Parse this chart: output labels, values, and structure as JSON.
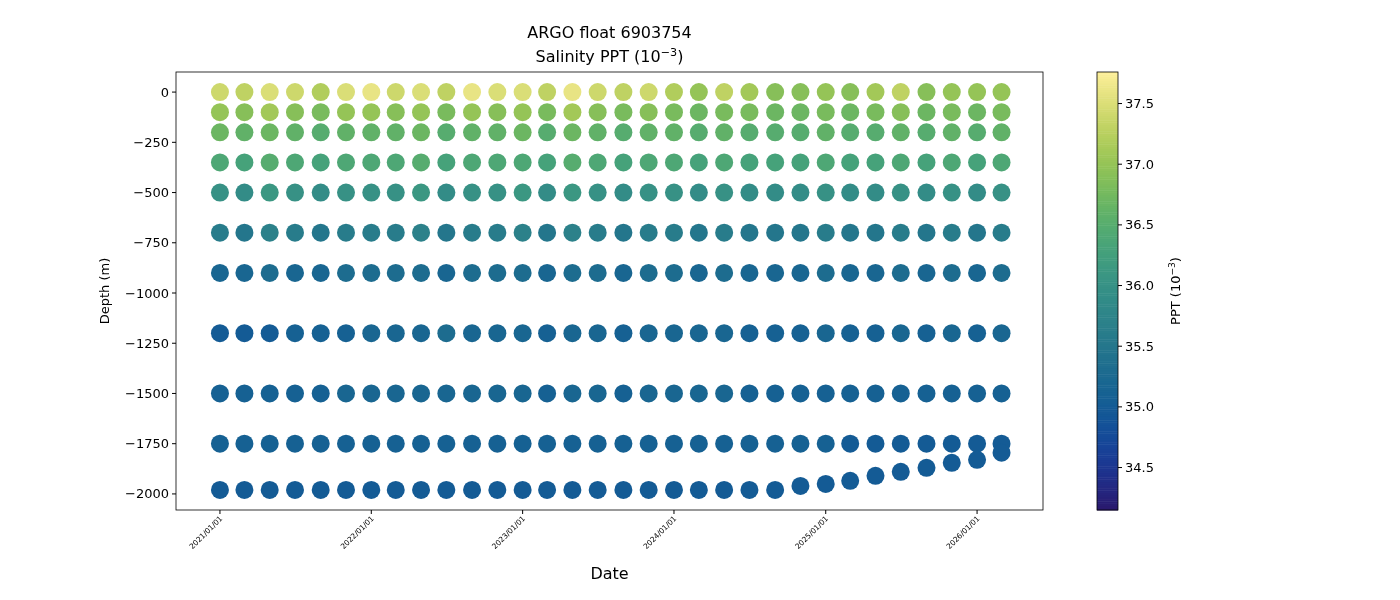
{
  "chart_data": {
    "type": "scatter",
    "marker": "circle",
    "title": "ARGO float 6903754",
    "subtitle": "Salinity PPT (10$^{−3}$)",
    "xlabel": "Date",
    "ylabel": "Depth (m)",
    "clabel": "PPT (10$^{−3}$)",
    "x": [
      "2021-01",
      "2021-03",
      "2021-05",
      "2021-07",
      "2021-09",
      "2021-11",
      "2022-01",
      "2022-03",
      "2022-05",
      "2022-07",
      "2022-09",
      "2022-11",
      "2023-01",
      "2023-03",
      "2023-05",
      "2023-07",
      "2023-09",
      "2023-11",
      "2024-01",
      "2024-03",
      "2024-05",
      "2024-07",
      "2024-09",
      "2024-11",
      "2025-01",
      "2025-03",
      "2025-05",
      "2025-07",
      "2025-09",
      "2025-11",
      "2026-01",
      "2026-03",
      "2021-01",
      "2021-03",
      "2021-05",
      "2021-07",
      "2021-09",
      "2021-11",
      "2022-01",
      "2022-03",
      "2022-05",
      "2022-07",
      "2022-09",
      "2022-11",
      "2023-01",
      "2023-03",
      "2023-05",
      "2023-07",
      "2023-09",
      "2023-11",
      "2024-01",
      "2024-03",
      "2024-05",
      "2024-07",
      "2024-09",
      "2024-11",
      "2025-01",
      "2025-03",
      "2025-05",
      "2025-07",
      "2025-09",
      "2025-11",
      "2026-01",
      "2026-03",
      "2021-01",
      "2021-03",
      "2021-05",
      "2021-07",
      "2021-09",
      "2021-11",
      "2022-01",
      "2022-03",
      "2022-05",
      "2022-07",
      "2022-09",
      "2022-11",
      "2023-01",
      "2023-03",
      "2023-05",
      "2023-07",
      "2023-09",
      "2023-11",
      "2024-01",
      "2024-03",
      "2024-05",
      "2024-07",
      "2024-09",
      "2024-11",
      "2025-01",
      "2025-03",
      "2025-05",
      "2025-07",
      "2025-09",
      "2025-11",
      "2026-01",
      "2026-03",
      "2021-01",
      "2021-03",
      "2021-05",
      "2021-07",
      "2021-09",
      "2021-11",
      "2022-01",
      "2022-03",
      "2022-05",
      "2022-07",
      "2022-09",
      "2022-11",
      "2023-01",
      "2023-03",
      "2023-05",
      "2023-07",
      "2023-09",
      "2023-11",
      "2024-01",
      "2024-03",
      "2024-05",
      "2024-07",
      "2024-09",
      "2024-11",
      "2025-01",
      "2025-03",
      "2025-05",
      "2025-07",
      "2025-09",
      "2025-11",
      "2026-01",
      "2026-03",
      "2021-01",
      "2021-03",
      "2021-05",
      "2021-07",
      "2021-09",
      "2021-11",
      "2022-01",
      "2022-03",
      "2022-05",
      "2022-07",
      "2022-09",
      "2022-11",
      "2023-01",
      "2023-03",
      "2023-05",
      "2023-07",
      "2023-09",
      "2023-11",
      "2024-01",
      "2024-03",
      "2024-05",
      "2024-07",
      "2024-09",
      "2024-11",
      "2025-01",
      "2025-03",
      "2025-05",
      "2025-07",
      "2025-09",
      "2025-11",
      "2026-01",
      "2026-03",
      "2021-01",
      "2021-03",
      "2021-05",
      "2021-07",
      "2021-09",
      "2021-11",
      "2022-01",
      "2022-03",
      "2022-05",
      "2022-07",
      "2022-09",
      "2022-11",
      "2023-01",
      "2023-03",
      "2023-05",
      "2023-07",
      "2023-09",
      "2023-11",
      "2024-01",
      "2024-03",
      "2024-05",
      "2024-07",
      "2024-09",
      "2024-11",
      "2025-01",
      "2025-03",
      "2025-05",
      "2025-07",
      "2025-09",
      "2025-11",
      "2026-01",
      "2026-03",
      "2021-01",
      "2021-03",
      "2021-05",
      "2021-07",
      "2021-09",
      "2021-11",
      "2022-01",
      "2022-03",
      "2022-05",
      "2022-07",
      "2022-09",
      "2022-11",
      "2023-01",
      "2023-03",
      "2023-05",
      "2023-07",
      "2023-09",
      "2023-11",
      "2024-01",
      "2024-03",
      "2024-05",
      "2024-07",
      "2024-09",
      "2024-11",
      "2025-01",
      "2025-03",
      "2025-05",
      "2025-07",
      "2025-09",
      "2025-11",
      "2026-01",
      "2026-03",
      "2021-01",
      "2021-03",
      "2021-05",
      "2021-07",
      "2021-09",
      "2021-11",
      "2022-01",
      "2022-03",
      "2022-05",
      "2022-07",
      "2022-09",
      "2022-11",
      "2023-01",
      "2023-03",
      "2023-05",
      "2023-07",
      "2023-09",
      "2023-11",
      "2024-01",
      "2024-03",
      "2024-05",
      "2024-07",
      "2024-09",
      "2024-11",
      "2025-01",
      "2025-03",
      "2025-05",
      "2025-07",
      "2025-09",
      "2025-11",
      "2026-01",
      "2026-03",
      "2021-01",
      "2021-03",
      "2021-05",
      "2021-07",
      "2021-09",
      "2021-11",
      "2022-01",
      "2022-03",
      "2022-05",
      "2022-07",
      "2022-09",
      "2022-11",
      "2023-01",
      "2023-03",
      "2023-05",
      "2023-07",
      "2023-09",
      "2023-11",
      "2024-01",
      "2024-03",
      "2024-05",
      "2024-07",
      "2024-09",
      "2024-11",
      "2025-01",
      "2025-03",
      "2025-05",
      "2025-07",
      "2025-09",
      "2025-11",
      "2026-01",
      "2026-03",
      "2021-01",
      "2021-03",
      "2021-05",
      "2021-07",
      "2021-09",
      "2021-11",
      "2022-01",
      "2022-03",
      "2022-05",
      "2022-07",
      "2022-09",
      "2022-11",
      "2023-01",
      "2023-03",
      "2023-05",
      "2023-07",
      "2023-09",
      "2023-11",
      "2024-01",
      "2024-03",
      "2024-05",
      "2024-07",
      "2024-09",
      "2024-11",
      "2025-01",
      "2025-03",
      "2025-05",
      "2025-07",
      "2025-09",
      "2025-11",
      "2026-01",
      "2026-03",
      "2021-01",
      "2021-03",
      "2021-05",
      "2021-07",
      "2021-09",
      "2021-11",
      "2022-01",
      "2022-03",
      "2022-05",
      "2022-07",
      "2022-09",
      "2022-11",
      "2023-01",
      "2023-03",
      "2023-05",
      "2023-07",
      "2023-09",
      "2023-11",
      "2024-01",
      "2024-03",
      "2024-05",
      "2024-07",
      "2024-09",
      "2024-11",
      "2025-01",
      "2025-03",
      "2025-05",
      "2025-07",
      "2025-09",
      "2025-11",
      "2026-01",
      "2026-03"
    ],
    "values": [
      0,
      0,
      0,
      0,
      0,
      0,
      0,
      0,
      0,
      0,
      0,
      0,
      0,
      0,
      0,
      0,
      0,
      0,
      0,
      0,
      0,
      0,
      0,
      0,
      0,
      0,
      0,
      0,
      0,
      0,
      0,
      0,
      -100,
      -100,
      -100,
      -100,
      -100,
      -100,
      -100,
      -100,
      -100,
      -100,
      -100,
      -100,
      -100,
      -100,
      -100,
      -100,
      -100,
      -100,
      -100,
      -100,
      -100,
      -100,
      -100,
      -100,
      -100,
      -100,
      -100,
      -100,
      -100,
      -100,
      -100,
      -100,
      -200,
      -200,
      -200,
      -200,
      -200,
      -200,
      -200,
      -200,
      -200,
      -200,
      -200,
      -200,
      -200,
      -200,
      -200,
      -200,
      -200,
      -200,
      -200,
      -200,
      -200,
      -200,
      -200,
      -200,
      -200,
      -200,
      -200,
      -200,
      -200,
      -200,
      -200,
      -200,
      -350,
      -350,
      -350,
      -350,
      -350,
      -350,
      -350,
      -350,
      -350,
      -350,
      -350,
      -350,
      -350,
      -350,
      -350,
      -350,
      -350,
      -350,
      -350,
      -350,
      -350,
      -350,
      -350,
      -350,
      -350,
      -350,
      -350,
      -350,
      -350,
      -350,
      -350,
      -350,
      -500,
      -500,
      -500,
      -500,
      -500,
      -500,
      -500,
      -500,
      -500,
      -500,
      -500,
      -500,
      -500,
      -500,
      -500,
      -500,
      -500,
      -500,
      -500,
      -500,
      -500,
      -500,
      -500,
      -500,
      -500,
      -500,
      -500,
      -500,
      -500,
      -500,
      -500,
      -500,
      -700,
      -700,
      -700,
      -700,
      -700,
      -700,
      -700,
      -700,
      -700,
      -700,
      -700,
      -700,
      -700,
      -700,
      -700,
      -700,
      -700,
      -700,
      -700,
      -700,
      -700,
      -700,
      -700,
      -700,
      -700,
      -700,
      -700,
      -700,
      -700,
      -700,
      -700,
      -700,
      -900,
      -900,
      -900,
      -900,
      -900,
      -900,
      -900,
      -900,
      -900,
      -900,
      -900,
      -900,
      -900,
      -900,
      -900,
      -900,
      -900,
      -900,
      -900,
      -900,
      -900,
      -900,
      -900,
      -900,
      -900,
      -900,
      -900,
      -900,
      -900,
      -900,
      -900,
      -900,
      -1200,
      -1200,
      -1200,
      -1200,
      -1200,
      -1200,
      -1200,
      -1200,
      -1200,
      -1200,
      -1200,
      -1200,
      -1200,
      -1200,
      -1200,
      -1200,
      -1200,
      -1200,
      -1200,
      -1200,
      -1200,
      -1200,
      -1200,
      -1200,
      -1200,
      -1200,
      -1200,
      -1200,
      -1200,
      -1200,
      -1200,
      -1200,
      -1500,
      -1500,
      -1500,
      -1500,
      -1500,
      -1500,
      -1500,
      -1500,
      -1500,
      -1500,
      -1500,
      -1500,
      -1500,
      -1500,
      -1500,
      -1500,
      -1500,
      -1500,
      -1500,
      -1500,
      -1500,
      -1500,
      -1500,
      -1500,
      -1500,
      -1500,
      -1500,
      -1500,
      -1500,
      -1500,
      -1500,
      -1500,
      -1750,
      -1750,
      -1750,
      -1750,
      -1750,
      -1750,
      -1750,
      -1750,
      -1750,
      -1750,
      -1750,
      -1750,
      -1750,
      -1750,
      -1750,
      -1750,
      -1750,
      -1750,
      -1750,
      -1750,
      -1750,
      -1750,
      -1750,
      -1750,
      -1750,
      -1750,
      -1750,
      -1750,
      -1750,
      -1750,
      -1750,
      -1750,
      -1980,
      -1980,
      -1980,
      -1980,
      -1980,
      -1980,
      -1980,
      -1980,
      -1980,
      -1980,
      -1980,
      -1980,
      -1980,
      -1980,
      -1980,
      -1980,
      -1980,
      -1980,
      -1980,
      -1980,
      -1980,
      -1980,
      -1980,
      -1960,
      -1950,
      -1935,
      -1910,
      -1890,
      -1870,
      -1845,
      -1830,
      -1795
    ],
    "cvalues": [
      37.4,
      37.3,
      37.5,
      37.4,
      37.2,
      37.5,
      37.6,
      37.4,
      37.5,
      37.3,
      37.6,
      37.5,
      37.5,
      37.3,
      37.6,
      37.4,
      37.3,
      37.4,
      37.2,
      37.0,
      37.3,
      37.1,
      36.9,
      36.9,
      37.0,
      36.9,
      37.1,
      37.3,
      36.9,
      37.0,
      37.0,
      37.0,
      37.0,
      36.9,
      37.1,
      36.9,
      36.8,
      37.0,
      37.0,
      36.9,
      37.0,
      36.8,
      37.0,
      36.9,
      37.0,
      36.8,
      37.1,
      36.9,
      36.8,
      36.9,
      36.8,
      36.7,
      36.8,
      36.8,
      36.7,
      36.7,
      36.8,
      36.7,
      36.8,
      36.9,
      36.7,
      36.8,
      36.7,
      36.8,
      36.7,
      36.6,
      36.7,
      36.6,
      36.5,
      36.6,
      36.6,
      36.6,
      36.7,
      36.5,
      36.6,
      36.6,
      36.7,
      36.5,
      36.7,
      36.6,
      36.5,
      36.6,
      36.6,
      36.5,
      36.6,
      36.5,
      36.5,
      36.5,
      36.6,
      36.5,
      36.5,
      36.6,
      36.5,
      36.6,
      36.5,
      36.6,
      36.4,
      36.3,
      36.5,
      36.4,
      36.3,
      36.4,
      36.4,
      36.4,
      36.5,
      36.3,
      36.4,
      36.4,
      36.4,
      36.3,
      36.5,
      36.4,
      36.3,
      36.4,
      36.4,
      36.3,
      36.4,
      36.3,
      36.3,
      36.3,
      36.4,
      36.3,
      36.3,
      36.4,
      36.3,
      36.4,
      36.3,
      36.4,
      36.0,
      35.9,
      36.1,
      36.0,
      35.9,
      36.0,
      36.0,
      36.0,
      36.1,
      35.9,
      36.0,
      36.0,
      36.1,
      35.9,
      36.1,
      36.0,
      35.9,
      36.0,
      36.0,
      35.9,
      36.0,
      35.9,
      35.9,
      35.9,
      36.0,
      35.9,
      35.9,
      36.0,
      35.9,
      36.0,
      35.9,
      36.0,
      35.6,
      35.5,
      35.7,
      35.6,
      35.5,
      35.6,
      35.6,
      35.6,
      35.7,
      35.5,
      35.6,
      35.6,
      35.7,
      35.5,
      35.7,
      35.6,
      35.5,
      35.6,
      35.6,
      35.5,
      35.6,
      35.5,
      35.5,
      35.5,
      35.6,
      35.5,
      35.5,
      35.6,
      35.5,
      35.6,
      35.5,
      35.6,
      35.2,
      35.2,
      35.3,
      35.2,
      35.2,
      35.3,
      35.3,
      35.3,
      35.3,
      35.2,
      35.3,
      35.3,
      35.3,
      35.2,
      35.3,
      35.3,
      35.2,
      35.3,
      35.3,
      35.2,
      35.3,
      35.2,
      35.2,
      35.2,
      35.3,
      35.2,
      35.2,
      35.3,
      35.2,
      35.3,
      35.2,
      35.3,
      35.0,
      35.0,
      35.0,
      35.1,
      35.1,
      35.1,
      35.2,
      35.2,
      35.2,
      35.3,
      35.2,
      35.2,
      35.2,
      35.1,
      35.2,
      35.2,
      35.1,
      35.2,
      35.2,
      35.2,
      35.2,
      35.1,
      35.1,
      35.1,
      35.2,
      35.1,
      35.1,
      35.2,
      35.1,
      35.2,
      35.1,
      35.2,
      35.1,
      35.1,
      35.1,
      35.1,
      35.1,
      35.2,
      35.2,
      35.2,
      35.2,
      35.2,
      35.2,
      35.2,
      35.2,
      35.1,
      35.2,
      35.2,
      35.1,
      35.2,
      35.2,
      35.2,
      35.2,
      35.1,
      35.1,
      35.1,
      35.1,
      35.1,
      35.1,
      35.1,
      35.1,
      35.1,
      35.1,
      35.1,
      35.1,
      35.1,
      35.1,
      35.1,
      35.1,
      35.1,
      35.1,
      35.1,
      35.1,
      35.1,
      35.1,
      35.1,
      35.1,
      35.1,
      35.1,
      35.1,
      35.1,
      35.1,
      35.1,
      35.1,
      35.1,
      35.1,
      35.1,
      35.1,
      35.1,
      35.0,
      35.0,
      35.0,
      35.0,
      35.0,
      35.0,
      35.0,
      35.0,
      35.0,
      35.0,
      35.0,
      35.0,
      35.0,
      35.0,
      35.0,
      35.0,
      35.0,
      35.0,
      35.0,
      35.0,
      35.0,
      35.0,
      35.0,
      35.0,
      35.0,
      35.0,
      35.0,
      35.0,
      35.0,
      35.0,
      35.0,
      35.0,
      35.0,
      35.0,
      35.0,
      35.0,
      35.0,
      35.0,
      35.0
    ],
    "xlim": [
      "2020-09-17",
      "2026-06-09"
    ],
    "xticks": [
      {
        "value": "2021-01-01",
        "label": "2021/01/01"
      },
      {
        "value": "2022-01-01",
        "label": "2022/01/01"
      },
      {
        "value": "2023-01-01",
        "label": "2023/01/01"
      },
      {
        "value": "2024-01-01",
        "label": "2024/01/01"
      },
      {
        "value": "2025-01-01",
        "label": "2025/01/01"
      },
      {
        "value": "2026-01-01",
        "label": "2026/01/01"
      }
    ],
    "ylim": [
      -2080,
      100
    ],
    "yticks": [
      0,
      -250,
      -500,
      -750,
      -1000,
      -1250,
      -1500,
      -1750,
      -2000
    ],
    "clim": [
      34.15,
      37.76
    ],
    "cticks": [
      {
        "value": 34.5,
        "label": "34.5"
      },
      {
        "value": 35,
        "label": "35.0"
      },
      {
        "value": 35.5,
        "label": "35.5"
      },
      {
        "value": 36,
        "label": "36.0"
      },
      {
        "value": 36.5,
        "label": "36.5"
      },
      {
        "value": 37,
        "label": "37.0"
      },
      {
        "value": 37.5,
        "label": "37.5"
      }
    ]
  }
}
